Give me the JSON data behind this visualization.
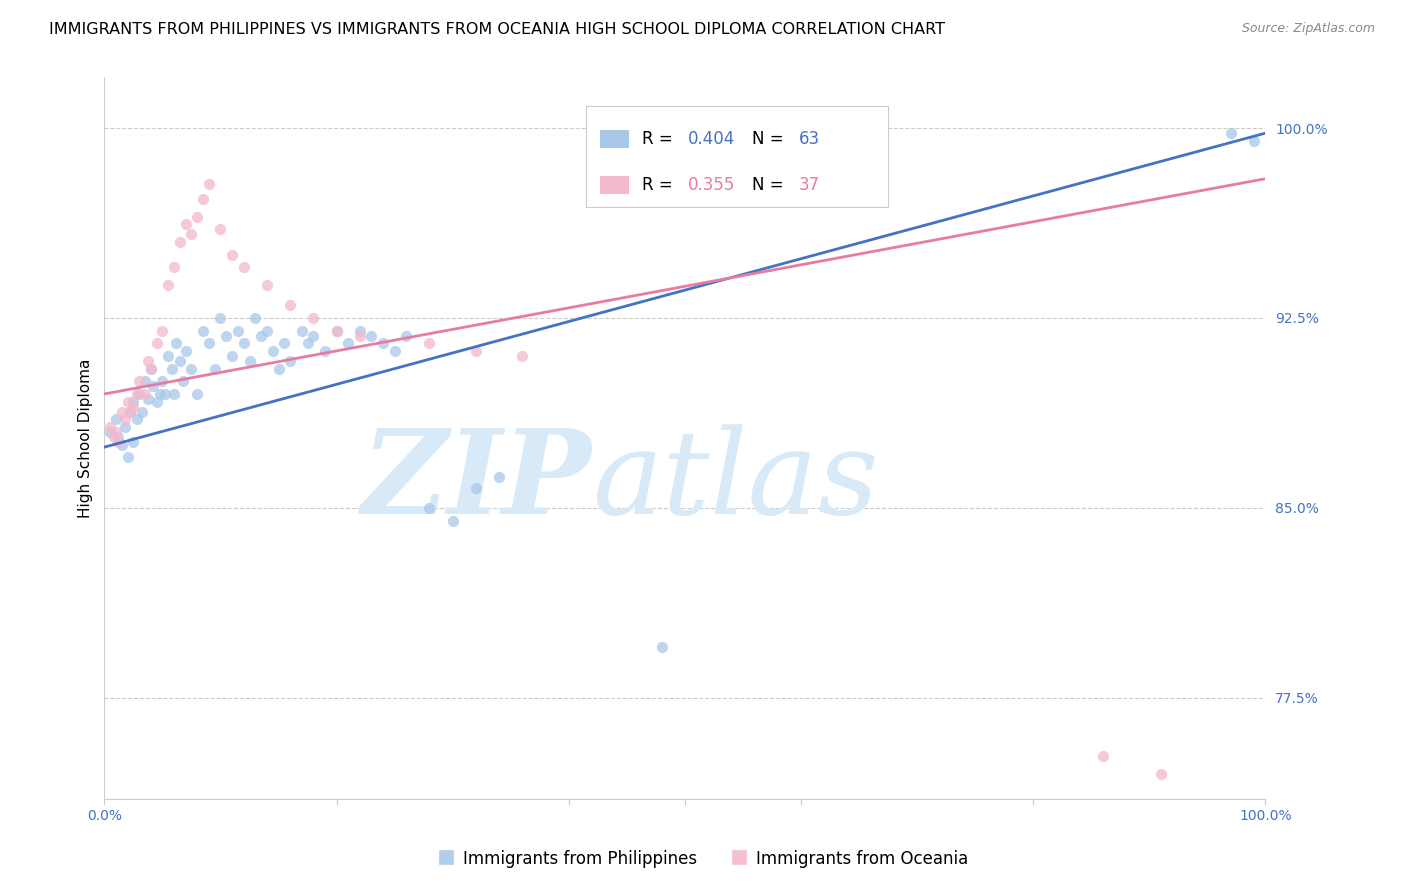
{
  "title": "IMMIGRANTS FROM PHILIPPINES VS IMMIGRANTS FROM OCEANIA HIGH SCHOOL DIPLOMA CORRELATION CHART",
  "source": "Source: ZipAtlas.com",
  "ylabel": "High School Diploma",
  "ytick_labels": [
    "77.5%",
    "85.0%",
    "92.5%",
    "100.0%"
  ],
  "ytick_values": [
    0.775,
    0.85,
    0.925,
    1.0
  ],
  "xlim": [
    0.0,
    1.0
  ],
  "ylim": [
    0.735,
    1.02
  ],
  "legend_blue_r": "0.404",
  "legend_blue_n": "63",
  "legend_pink_r": "0.355",
  "legend_pink_n": "37",
  "legend_blue_label": "Immigrants from Philippines",
  "legend_pink_label": "Immigrants from Oceania",
  "blue_color": "#a8c8e8",
  "pink_color": "#f4b8cc",
  "blue_line_color": "#4472c4",
  "pink_line_color": "#e87ca0",
  "scatter_alpha": 0.75,
  "marker_size": 65,
  "blue_x": [
    0.005,
    0.01,
    0.012,
    0.015,
    0.018,
    0.02,
    0.022,
    0.025,
    0.025,
    0.028,
    0.03,
    0.032,
    0.035,
    0.038,
    0.04,
    0.042,
    0.045,
    0.048,
    0.05,
    0.052,
    0.055,
    0.058,
    0.06,
    0.062,
    0.065,
    0.068,
    0.07,
    0.075,
    0.08,
    0.085,
    0.09,
    0.095,
    0.1,
    0.105,
    0.11,
    0.115,
    0.12,
    0.125,
    0.13,
    0.135,
    0.14,
    0.145,
    0.15,
    0.155,
    0.16,
    0.17,
    0.175,
    0.18,
    0.19,
    0.2,
    0.21,
    0.22,
    0.23,
    0.24,
    0.25,
    0.26,
    0.28,
    0.3,
    0.32,
    0.34,
    0.48,
    0.97,
    0.99
  ],
  "blue_y": [
    0.88,
    0.885,
    0.878,
    0.875,
    0.882,
    0.87,
    0.888,
    0.892,
    0.876,
    0.885,
    0.895,
    0.888,
    0.9,
    0.893,
    0.905,
    0.898,
    0.892,
    0.895,
    0.9,
    0.895,
    0.91,
    0.905,
    0.895,
    0.915,
    0.908,
    0.9,
    0.912,
    0.905,
    0.895,
    0.92,
    0.915,
    0.905,
    0.925,
    0.918,
    0.91,
    0.92,
    0.915,
    0.908,
    0.925,
    0.918,
    0.92,
    0.912,
    0.905,
    0.915,
    0.908,
    0.92,
    0.915,
    0.918,
    0.912,
    0.92,
    0.915,
    0.92,
    0.918,
    0.915,
    0.912,
    0.918,
    0.85,
    0.845,
    0.858,
    0.862,
    0.795,
    0.998,
    0.995
  ],
  "pink_x": [
    0.005,
    0.008,
    0.01,
    0.012,
    0.015,
    0.018,
    0.02,
    0.022,
    0.025,
    0.028,
    0.03,
    0.035,
    0.038,
    0.04,
    0.045,
    0.05,
    0.055,
    0.06,
    0.065,
    0.07,
    0.075,
    0.08,
    0.085,
    0.09,
    0.1,
    0.11,
    0.12,
    0.14,
    0.16,
    0.18,
    0.2,
    0.22,
    0.28,
    0.32,
    0.36,
    0.86,
    0.91
  ],
  "pink_y": [
    0.882,
    0.878,
    0.88,
    0.876,
    0.888,
    0.885,
    0.892,
    0.888,
    0.89,
    0.895,
    0.9,
    0.895,
    0.908,
    0.905,
    0.915,
    0.92,
    0.938,
    0.945,
    0.955,
    0.962,
    0.958,
    0.965,
    0.972,
    0.978,
    0.96,
    0.95,
    0.945,
    0.938,
    0.93,
    0.925,
    0.92,
    0.918,
    0.915,
    0.912,
    0.91,
    0.752,
    0.745
  ],
  "blue_trend_y_start": 0.874,
  "blue_trend_y_end": 0.998,
  "pink_trend_y_start": 0.895,
  "pink_trend_y_end": 0.98,
  "watermark_zip": "ZIP",
  "watermark_atlas": "atlas",
  "watermark_color": "#d8eaf8",
  "watermark_fontsize": 85,
  "title_fontsize": 11.5,
  "source_fontsize": 9,
  "axis_label_fontsize": 11,
  "tick_fontsize": 10,
  "legend_fontsize": 12,
  "right_tick_color": "#4472c4",
  "bottom_tick_color": "#4472c4",
  "legend_r_blue_color": "#4472c4",
  "legend_r_pink_color": "#e87ca0"
}
